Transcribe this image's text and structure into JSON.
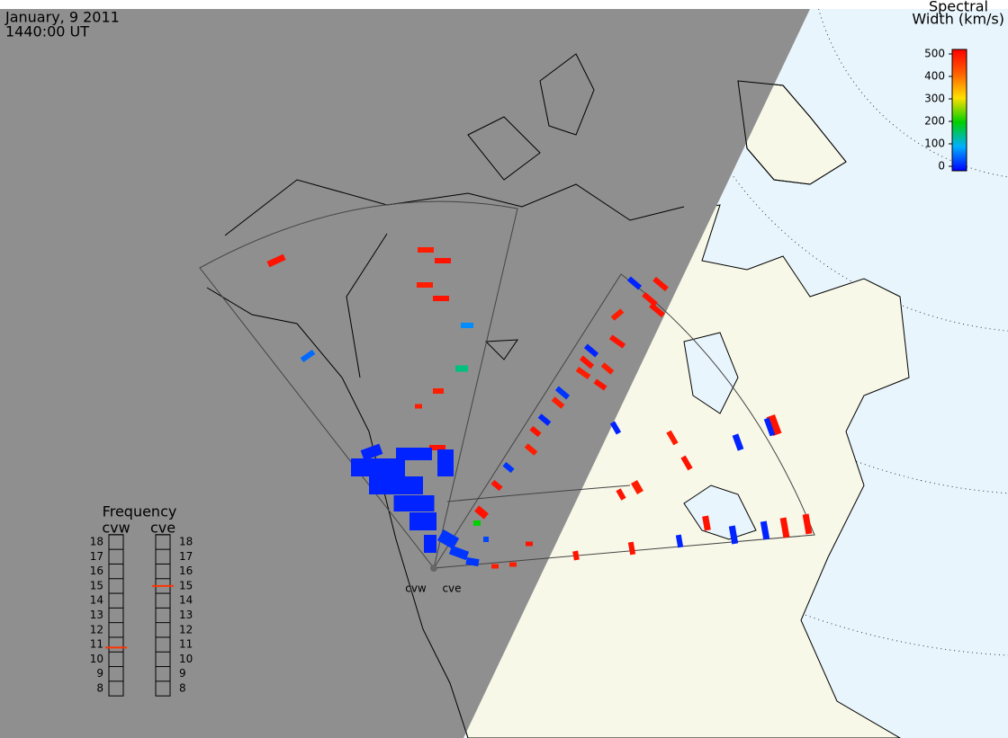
{
  "header": {
    "date": "January, 9 2011",
    "time": "1440:00 UT"
  },
  "colorbar": {
    "title": [
      "Spectral",
      "Width (km/s)"
    ],
    "lim": [
      0,
      500
    ],
    "ticks": [
      0,
      100,
      200,
      300,
      400,
      500
    ]
  },
  "frequency": {
    "title": "Frequency",
    "lim": [
      8,
      18
    ],
    "ticks": [
      8,
      9,
      10,
      11,
      12,
      13,
      14,
      15,
      16,
      17,
      18
    ],
    "radars": [
      {
        "name": "cvw",
        "value": 10.8
      },
      {
        "name": "cve",
        "value": 15
      }
    ]
  },
  "sites": [
    "cvw",
    "cve"
  ],
  "echoes": [
    480,
    470,
    480,
    470,
    480,
    80,
    60,
    150,
    470,
    470,
    480,
    20,
    20,
    20,
    20,
    20,
    20,
    20,
    20,
    30,
    30,
    30,
    20,
    480,
    480,
    480,
    470,
    20,
    480,
    480,
    470,
    30,
    470,
    480,
    470,
    20,
    480,
    470,
    30,
    480,
    480,
    20,
    470,
    480,
    470,
    480,
    20,
    480,
    20,
    480,
    480,
    20,
    20,
    480,
    20,
    480,
    480,
    480,
    470,
    470,
    40,
    200
  ]
}
